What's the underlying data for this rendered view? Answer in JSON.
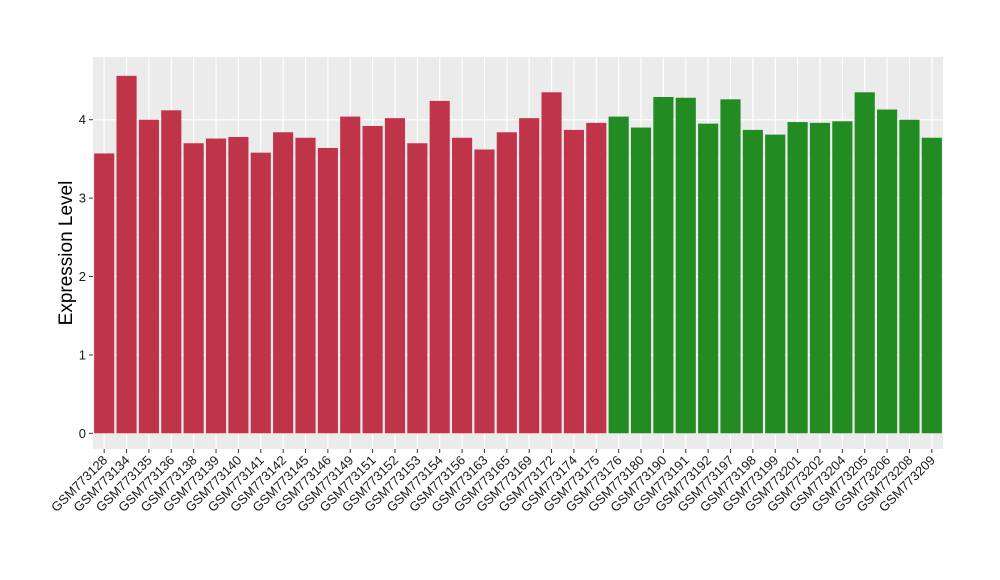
{
  "chart_data": {
    "type": "bar",
    "ylabel": "Expression Level",
    "xlabel": "",
    "ylim": [
      -0.2,
      4.8
    ],
    "yticks": [
      0,
      1,
      2,
      3,
      4
    ],
    "grid": true,
    "legend": "none",
    "background_color": "#ebebeb",
    "grid_color": "#ffffff",
    "colors": {
      "group_1": "#c0344a",
      "group_2": "#228b22"
    },
    "categories": [
      "GSM773128",
      "GSM773134",
      "GSM773135",
      "GSM773136",
      "GSM773138",
      "GSM773139",
      "GSM773140",
      "GSM773141",
      "GSM773142",
      "GSM773145",
      "GSM773146",
      "GSM773149",
      "GSM773151",
      "GSM773152",
      "GSM773153",
      "GSM773154",
      "GSM773156",
      "GSM773163",
      "GSM773165",
      "GSM773169",
      "GSM773172",
      "GSM773174",
      "GSM773175",
      "GSM773176",
      "GSM773180",
      "GSM773190",
      "GSM773191",
      "GSM773192",
      "GSM773197",
      "GSM773198",
      "GSM773199",
      "GSM773201",
      "GSM773202",
      "GSM773204",
      "GSM773205",
      "GSM773206",
      "GSM773208",
      "GSM773209"
    ],
    "values": [
      3.57,
      4.56,
      4.0,
      4.12,
      3.7,
      3.76,
      3.78,
      3.58,
      3.84,
      3.77,
      3.64,
      4.04,
      3.92,
      4.02,
      3.7,
      4.24,
      3.77,
      3.62,
      3.84,
      4.02,
      4.35,
      3.87,
      3.96,
      4.04,
      3.9,
      4.29,
      4.28,
      3.95,
      4.26,
      3.87,
      3.81,
      3.97,
      3.96,
      3.98,
      4.35,
      4.13,
      4.0,
      3.77
    ],
    "groups": [
      "group_1",
      "group_1",
      "group_1",
      "group_1",
      "group_1",
      "group_1",
      "group_1",
      "group_1",
      "group_1",
      "group_1",
      "group_1",
      "group_1",
      "group_1",
      "group_1",
      "group_1",
      "group_1",
      "group_1",
      "group_1",
      "group_1",
      "group_1",
      "group_1",
      "group_1",
      "group_1",
      "group_2",
      "group_2",
      "group_2",
      "group_2",
      "group_2",
      "group_2",
      "group_2",
      "group_2",
      "group_2",
      "group_2",
      "group_2",
      "group_2",
      "group_2",
      "group_2",
      "group_2"
    ]
  }
}
